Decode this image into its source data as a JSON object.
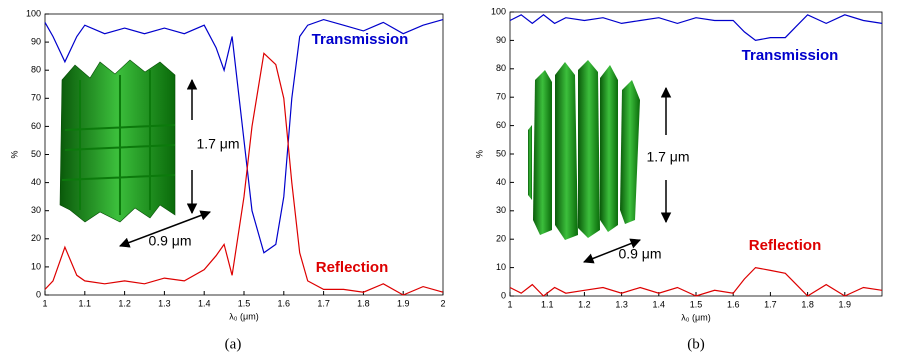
{
  "chart_data": [
    {
      "type": "line",
      "caption": "(a)",
      "xlabel": "λ₀ (μm)",
      "ylabel": "%",
      "x": [
        1.0,
        1.02,
        1.05,
        1.08,
        1.1,
        1.15,
        1.2,
        1.25,
        1.3,
        1.35,
        1.4,
        1.43,
        1.45,
        1.47,
        1.5,
        1.52,
        1.55,
        1.58,
        1.6,
        1.62,
        1.64,
        1.66,
        1.7,
        1.75,
        1.8,
        1.85,
        1.9,
        1.95,
        2.0
      ],
      "series": [
        {
          "name": "Transmission",
          "color": "#0000cc",
          "values": [
            97,
            92,
            83,
            92,
            96,
            93,
            95,
            93,
            95,
            93,
            96,
            88,
            80,
            92,
            55,
            30,
            15,
            18,
            35,
            70,
            92,
            96,
            98,
            96,
            94,
            97,
            93,
            96,
            98
          ]
        },
        {
          "name": "Reflection",
          "color": "#dd0000",
          "values": [
            2,
            5,
            17,
            7,
            5,
            4,
            5,
            4,
            6,
            5,
            9,
            14,
            18,
            7,
            35,
            60,
            86,
            82,
            70,
            40,
            15,
            5,
            2,
            2,
            1,
            4,
            0,
            3,
            1
          ]
        }
      ],
      "annotations": [
        "1.7 μm",
        "0.9 μm"
      ],
      "xlim": [
        1,
        2
      ],
      "xticks": [
        1,
        1.1,
        1.2,
        1.3,
        1.4,
        1.5,
        1.6,
        1.7,
        1.8,
        1.9,
        2
      ],
      "ylim": [
        0,
        100
      ],
      "yticks": [
        0,
        10,
        20,
        30,
        40,
        50,
        60,
        70,
        80,
        90,
        100
      ],
      "grid": false
    },
    {
      "type": "line",
      "caption": "(b)",
      "xlabel": "λ₀ (μm)",
      "ylabel": "%",
      "x": [
        1.0,
        1.03,
        1.06,
        1.09,
        1.12,
        1.15,
        1.2,
        1.25,
        1.3,
        1.35,
        1.4,
        1.45,
        1.5,
        1.55,
        1.6,
        1.63,
        1.66,
        1.7,
        1.74,
        1.77,
        1.8,
        1.85,
        1.9,
        1.95,
        2.0
      ],
      "series": [
        {
          "name": "Transmission",
          "color": "#0000cc",
          "values": [
            97,
            99,
            96,
            99,
            96,
            98,
            97,
            98,
            96,
            97,
            98,
            96,
            98,
            97,
            97,
            93,
            90,
            91,
            91,
            95,
            99,
            96,
            99,
            97,
            96
          ]
        },
        {
          "name": "Reflection",
          "color": "#dd0000",
          "values": [
            3,
            1,
            4,
            0,
            3,
            1,
            2,
            3,
            1,
            3,
            1,
            3,
            0,
            2,
            1,
            6,
            10,
            9,
            8,
            4,
            0,
            4,
            0,
            3,
            2
          ]
        }
      ],
      "annotations": [
        "1.7 μm",
        "0.9 μm"
      ],
      "xlim": [
        1,
        2
      ],
      "xticks": [
        1,
        1.1,
        1.2,
        1.3,
        1.4,
        1.5,
        1.6,
        1.7,
        1.8,
        1.9
      ],
      "ylim": [
        0,
        100
      ],
      "yticks": [
        0,
        10,
        20,
        30,
        40,
        50,
        60,
        70,
        80,
        90,
        100
      ],
      "grid": false
    }
  ]
}
